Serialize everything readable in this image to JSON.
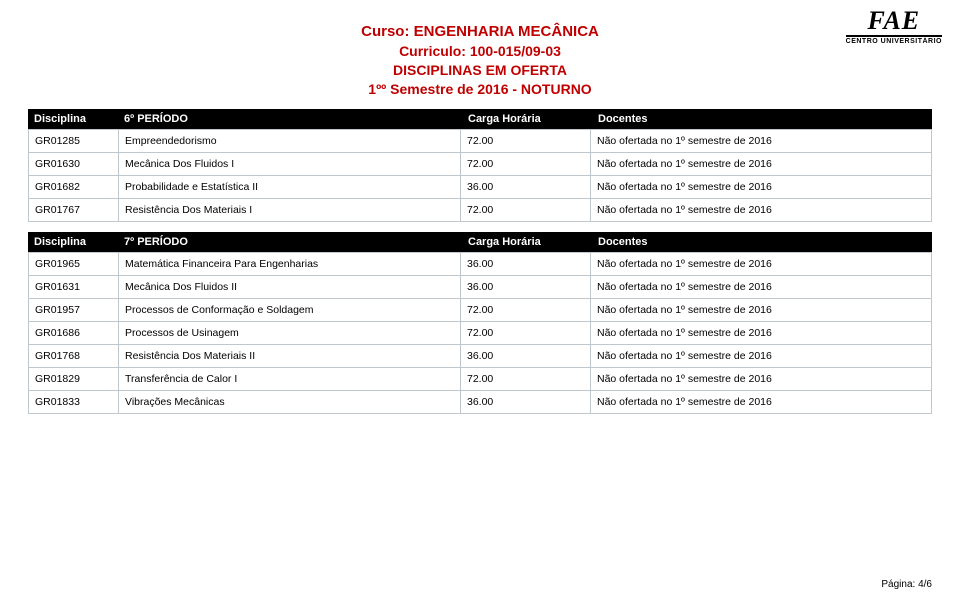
{
  "logo": {
    "main": "FAE",
    "sub": "CENTRO UNIVERSITÁRIO"
  },
  "header": {
    "l1": "Curso: ENGENHARIA MECÂNICA",
    "l2": "Curriculo: 100-015/09-03",
    "l3": "DISCIPLINAS EM OFERTA",
    "l4": "1ºº Semestre de 2016 - NOTURNO"
  },
  "cols": {
    "disciplina": "Disciplina",
    "carga": "Carga Horária",
    "docentes": "Docentes"
  },
  "section6": {
    "periodo": "6º PERÍODO",
    "rows": [
      {
        "code": "GR01285",
        "name": "Empreendedorismo",
        "hours": "72.00",
        "doc": "Não ofertada no 1º semestre de 2016"
      },
      {
        "code": "GR01630",
        "name": "Mecânica Dos Fluidos I",
        "hours": "72.00",
        "doc": "Não ofertada no 1º semestre de 2016"
      },
      {
        "code": "GR01682",
        "name": "Probabilidade e Estatística II",
        "hours": "36.00",
        "doc": "Não ofertada no 1º semestre de 2016"
      },
      {
        "code": "GR01767",
        "name": "Resistência Dos Materiais I",
        "hours": "72.00",
        "doc": "Não ofertada no 1º semestre de 2016"
      }
    ]
  },
  "section7": {
    "periodo": "7º PERÍODO",
    "rows": [
      {
        "code": "GR01965",
        "name": "Matemática Financeira Para Engenharias",
        "hours": "36.00",
        "doc": "Não ofertada no 1º semestre de 2016"
      },
      {
        "code": "GR01631",
        "name": "Mecânica Dos Fluidos II",
        "hours": "36.00",
        "doc": "Não ofertada no 1º semestre de 2016"
      },
      {
        "code": "GR01957",
        "name": "Processos de Conformação e Soldagem",
        "hours": "72.00",
        "doc": "Não ofertada no 1º semestre de 2016"
      },
      {
        "code": "GR01686",
        "name": "Processos de Usinagem",
        "hours": "72.00",
        "doc": "Não ofertada no 1º semestre de 2016"
      },
      {
        "code": "GR01768",
        "name": "Resistência Dos Materiais II",
        "hours": "36.00",
        "doc": "Não ofertada no 1º semestre de 2016"
      },
      {
        "code": "GR01829",
        "name": "Transferência de Calor I",
        "hours": "72.00",
        "doc": "Não ofertada no 1º semestre de 2016"
      },
      {
        "code": "GR01833",
        "name": "Vibrações Mecânicas",
        "hours": "36.00",
        "doc": "Não ofertada no 1º semestre de 2016"
      }
    ]
  },
  "footer": "Página: 4/6"
}
